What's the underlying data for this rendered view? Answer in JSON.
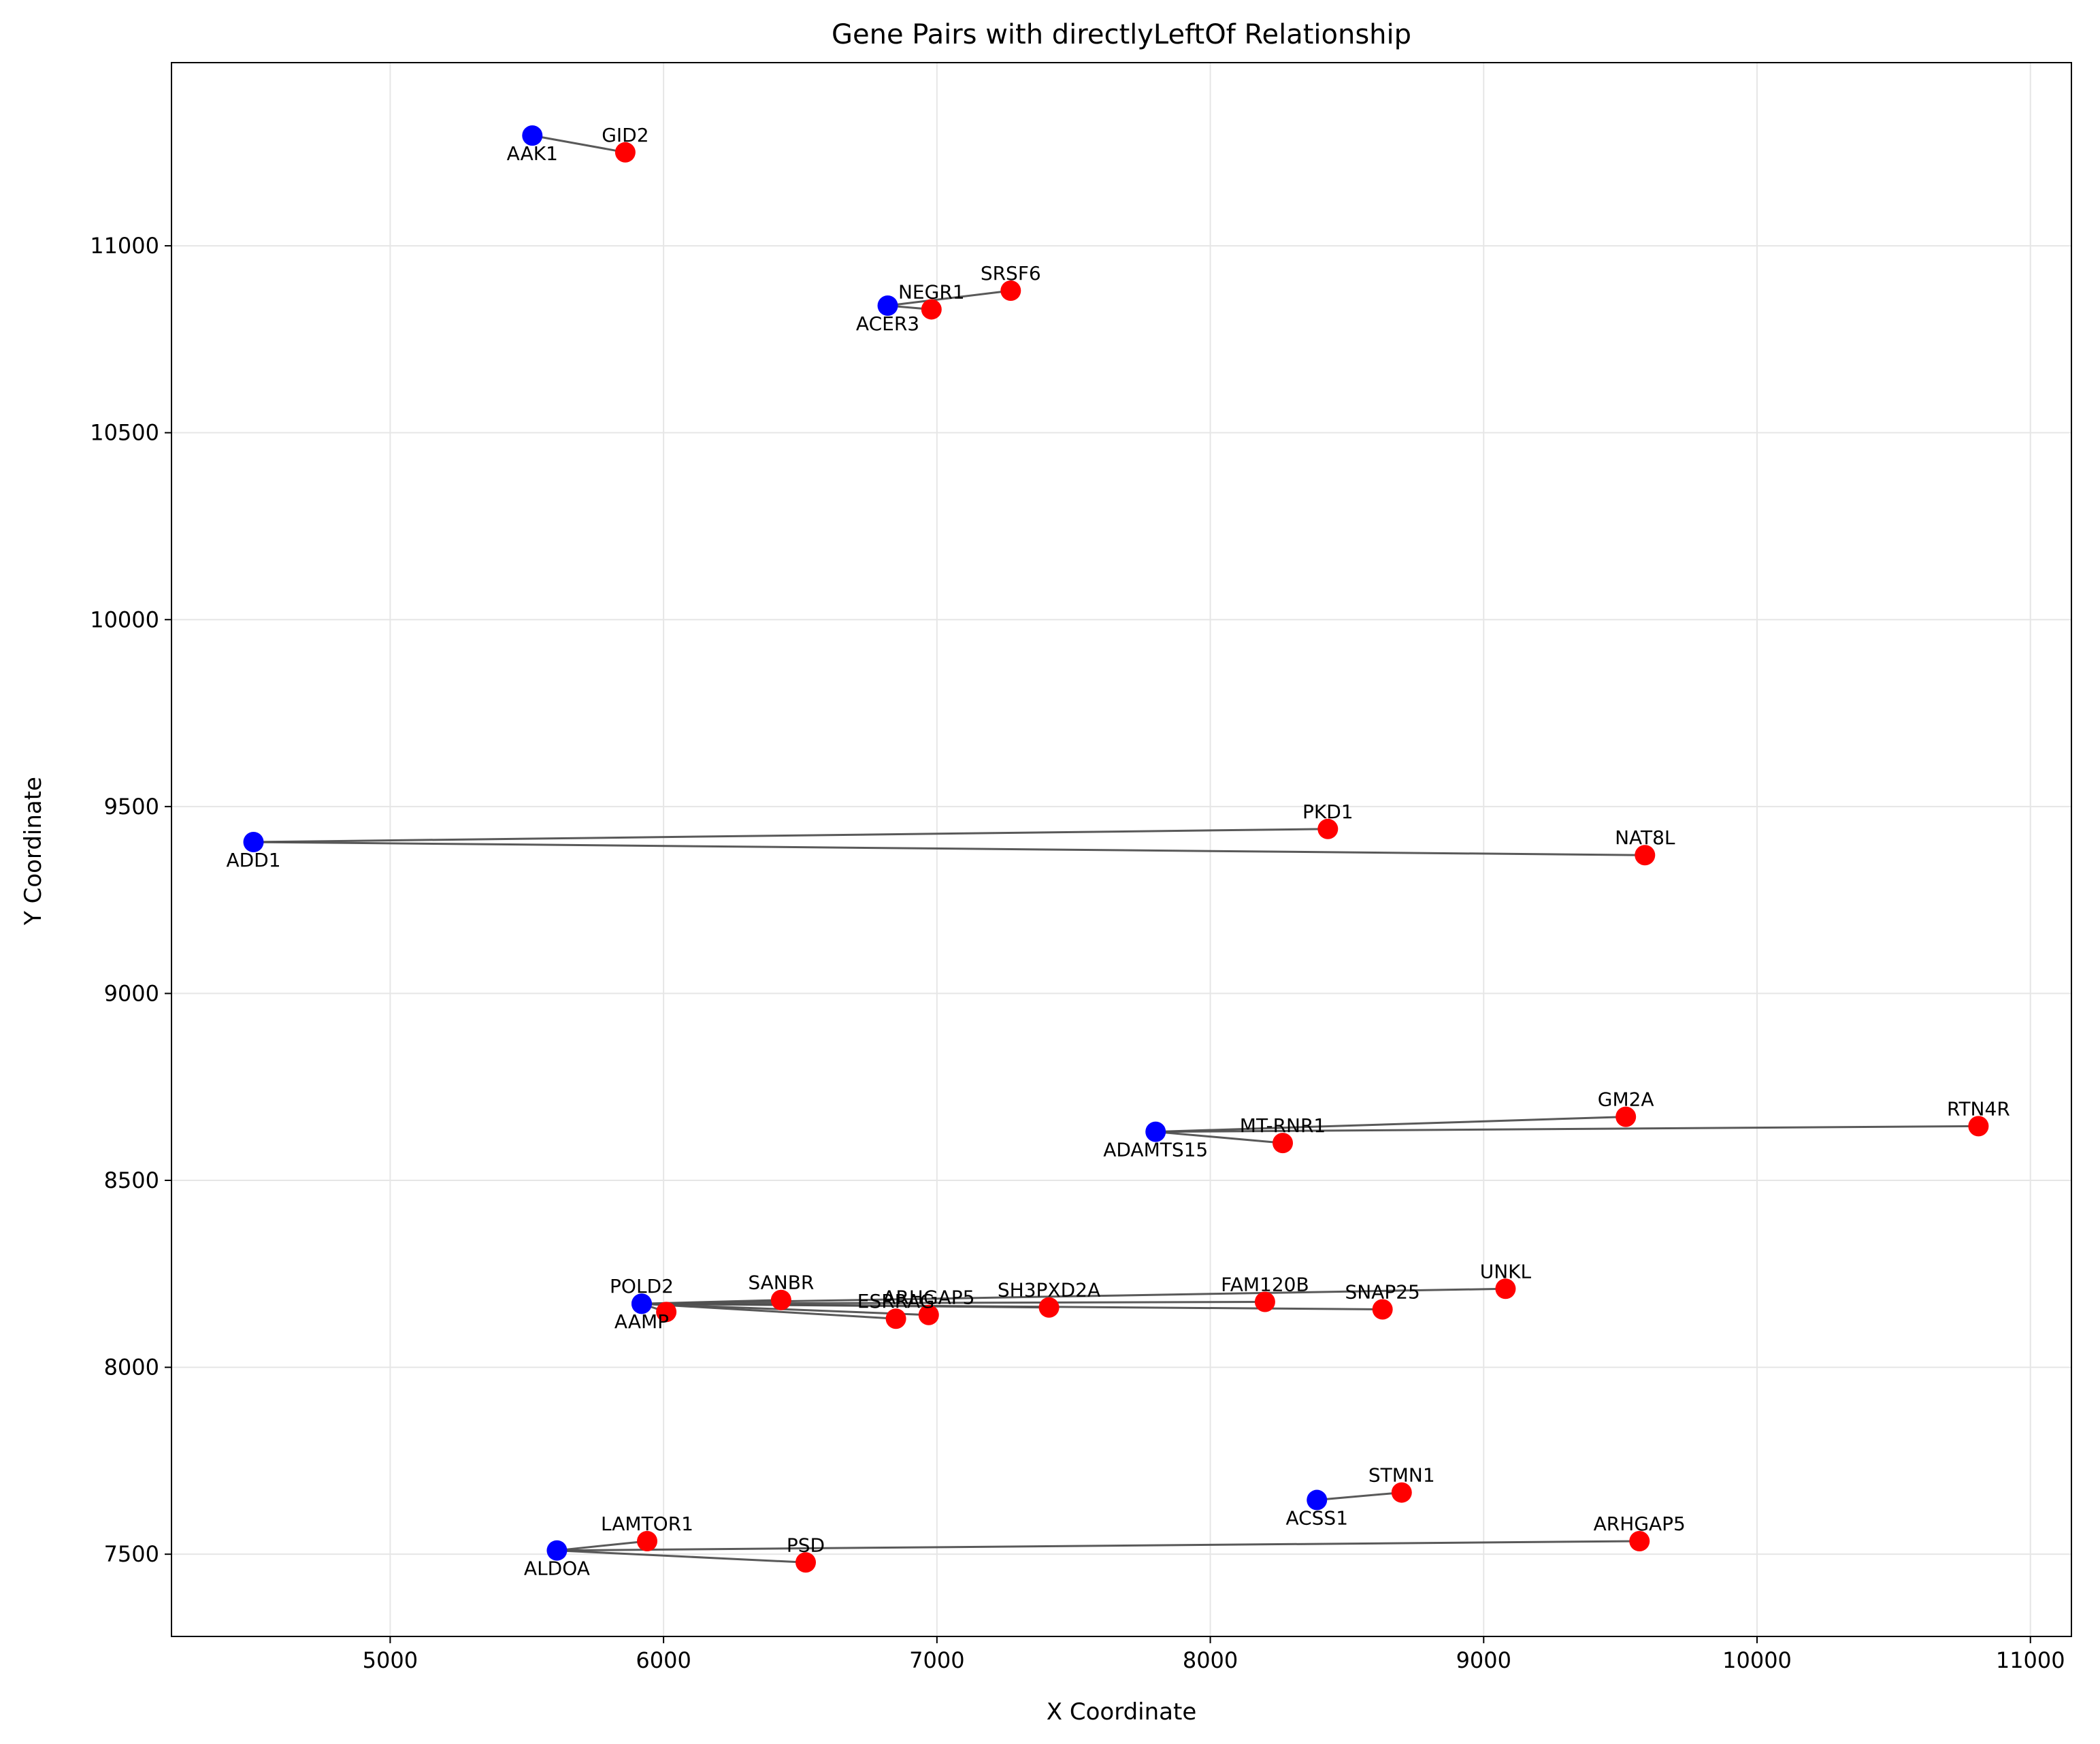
{
  "chart_data": {
    "type": "scatter",
    "title": "Gene Pairs with directlyLeftOf Relationship",
    "xlabel": "X Coordinate",
    "ylabel": "Y Coordinate",
    "xlim": [
      4200,
      11150
    ],
    "ylim": [
      7280,
      11490
    ],
    "xticks": [
      5000,
      6000,
      7000,
      8000,
      9000,
      10000,
      11000
    ],
    "yticks": [
      7500,
      8000,
      8500,
      9000,
      9500,
      10000,
      10500,
      11000
    ],
    "grid": true,
    "colors": {
      "source": "#0000ff",
      "target": "#ff0000",
      "connector": "#505050"
    },
    "sources": [
      {
        "name": "AAK1",
        "x": 5520,
        "y": 11295,
        "label_pos": "below"
      },
      {
        "name": "ACER3",
        "x": 6820,
        "y": 10840,
        "label_pos": "below"
      },
      {
        "name": "ADD1",
        "x": 4500,
        "y": 9405,
        "label_pos": "below"
      },
      {
        "name": "ADAMTS15",
        "x": 7800,
        "y": 8630,
        "label_pos": "below"
      },
      {
        "name": "POLD2",
        "x": 5920,
        "y": 8170,
        "label_pos": "above"
      },
      {
        "name": "AAMP",
        "x": 5920,
        "y": 8170,
        "label_pos": "below"
      },
      {
        "name": "ACSS1",
        "x": 8390,
        "y": 7645,
        "label_pos": "below"
      },
      {
        "name": "ALDOA",
        "x": 5610,
        "y": 7510,
        "label_pos": "below"
      }
    ],
    "pairs": [
      {
        "source": "AAK1",
        "target": "GID2",
        "x": 5860,
        "y": 11250
      },
      {
        "source": "ACER3",
        "target": "NEGR1",
        "x": 6980,
        "y": 10830
      },
      {
        "source": "ACER3",
        "target": "SRSF6",
        "x": 7270,
        "y": 10880
      },
      {
        "source": "ADD1",
        "target": "PKD1",
        "x": 8430,
        "y": 9440
      },
      {
        "source": "ADD1",
        "target": "NAT8L",
        "x": 9590,
        "y": 9370
      },
      {
        "source": "ADAMTS15",
        "target": "GM2A",
        "x": 9520,
        "y": 8670
      },
      {
        "source": "ADAMTS15",
        "target": "MT-RNR1",
        "x": 8265,
        "y": 8600
      },
      {
        "source": "ADAMTS15",
        "target": "RTN4R",
        "x": 10810,
        "y": 8645
      },
      {
        "source": "AAMP",
        "target": "SANBR",
        "x": 6430,
        "y": 8180
      },
      {
        "source": "AAMP",
        "target": "ESRRAG",
        "x": 6850,
        "y": 8130
      },
      {
        "source": "AAMP",
        "target": "ARHGAP5",
        "x": 6970,
        "y": 8140
      },
      {
        "source": "AAMP",
        "target": "SH3PXD2A",
        "x": 7410,
        "y": 8160
      },
      {
        "source": "AAMP",
        "target": "FAM120B",
        "x": 8200,
        "y": 8175
      },
      {
        "source": "AAMP",
        "target": "SNAP25",
        "x": 8630,
        "y": 8155
      },
      {
        "source": "AAMP",
        "target": "UNKL",
        "x": 9080,
        "y": 8210
      },
      {
        "source": "AAMP",
        "target": "",
        "x": 6010,
        "y": 8148
      },
      {
        "source": "ACSS1",
        "target": "STMN1",
        "x": 8700,
        "y": 7665
      },
      {
        "source": "ALDOA",
        "target": "LAMTOR1",
        "x": 5940,
        "y": 7535
      },
      {
        "source": "ALDOA",
        "target": "PSD",
        "x": 6520,
        "y": 7478
      },
      {
        "source": "ALDOA",
        "target": "ARHGAP5",
        "x": 9570,
        "y": 7535
      }
    ]
  }
}
